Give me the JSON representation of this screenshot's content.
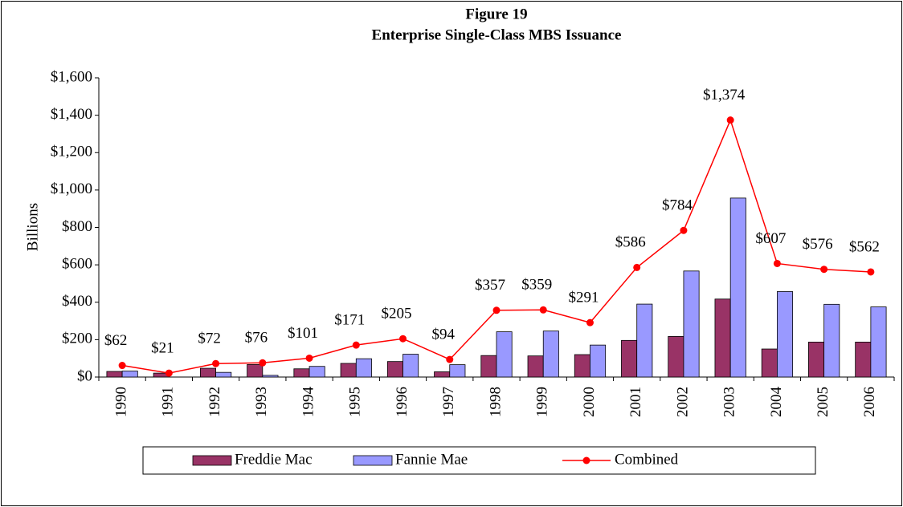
{
  "chart_data": {
    "type": "bar",
    "title": "Figure 19",
    "subtitle": "Enterprise Single-Class MBS Issuance",
    "y_label": "Billions",
    "categories": [
      "1990",
      "1991",
      "1992",
      "1993",
      "1994",
      "1995",
      "1996",
      "1997",
      "1998",
      "1999",
      "2000",
      "2001",
      "2002",
      "2003",
      "2004",
      "2005",
      "2006"
    ],
    "series": [
      {
        "name": "Freddie Mac",
        "type": "bar",
        "color": "#993366",
        "values": [
          30,
          21,
          47,
          67,
          44,
          73,
          83,
          28,
          115,
          113,
          120,
          196,
          217,
          417,
          150,
          187,
          187
        ]
      },
      {
        "name": "Fannie Mae",
        "type": "bar",
        "color": "#9999ff",
        "values": [
          32,
          0,
          25,
          9,
          57,
          98,
          122,
          66,
          242,
          246,
          171,
          390,
          567,
          957,
          457,
          389,
          375
        ]
      },
      {
        "name": "Combined",
        "type": "line",
        "color": "#ff0000",
        "values": [
          62,
          21,
          72,
          76,
          101,
          171,
          205,
          94,
          357,
          359,
          291,
          586,
          784,
          1374,
          607,
          576,
          562
        ],
        "value_labels": [
          "$62",
          "$21",
          "$72",
          "$76",
          "$101",
          "$171",
          "$205",
          "$94",
          "$357",
          "$359",
          "$291",
          "$586",
          "$784",
          "$1,374",
          "$607",
          "$576",
          "$562"
        ]
      }
    ],
    "ylim": [
      0,
      1600
    ],
    "yticks": [
      {
        "value": 0,
        "label": "$0"
      },
      {
        "value": 200,
        "label": "$200"
      },
      {
        "value": 400,
        "label": "$400"
      },
      {
        "value": 600,
        "label": "$600"
      },
      {
        "value": 800,
        "label": "$800"
      },
      {
        "value": 1000,
        "label": "$1,000"
      },
      {
        "value": 1200,
        "label": "$1,200"
      },
      {
        "value": 1400,
        "label": "$1,400"
      },
      {
        "value": 1600,
        "label": "$1,600"
      }
    ],
    "grid": false,
    "legend": "bottom"
  }
}
